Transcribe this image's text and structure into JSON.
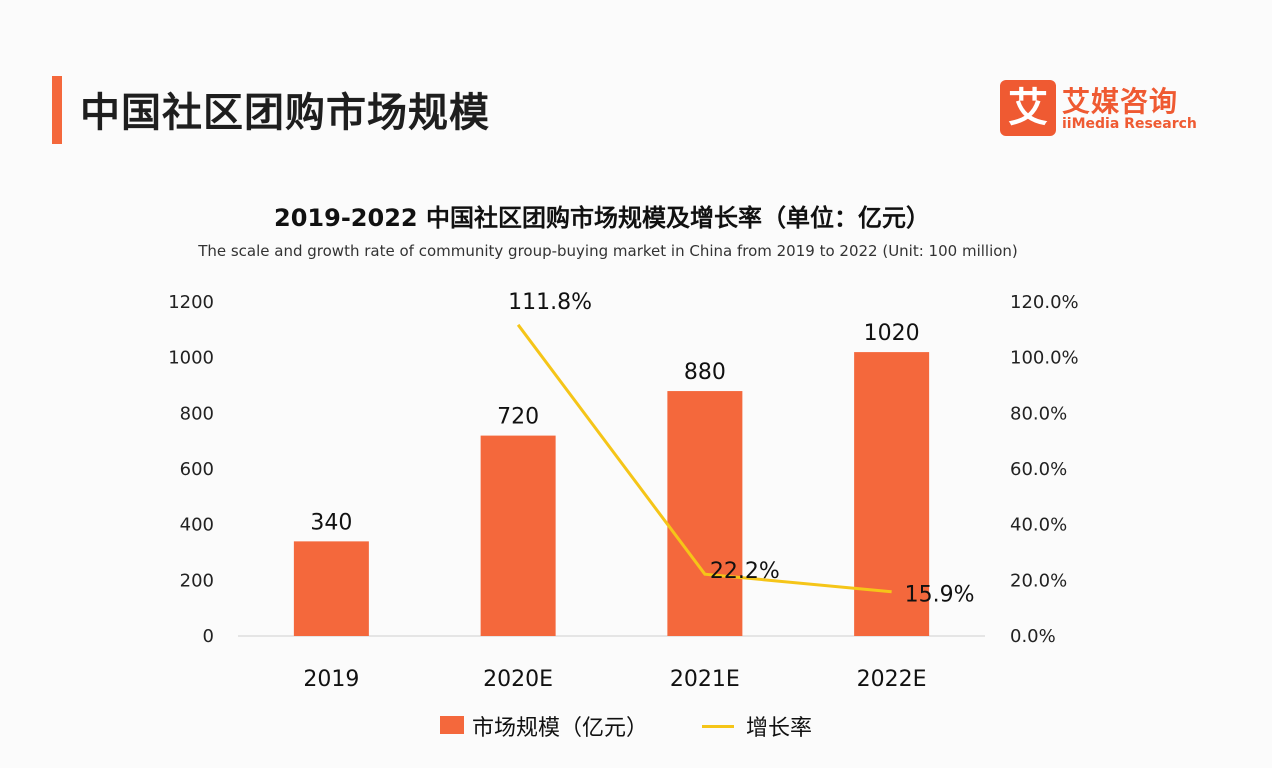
{
  "header": {
    "title": "中国社区团购市场规模",
    "logo_mark": "艾",
    "logo_cn": "艾媒咨询",
    "logo_en": "iiMedia Research"
  },
  "colors": {
    "accent": "#f4683c",
    "bar": "#f4683c",
    "line": "#f5c518",
    "axis": "#cfcfcf"
  },
  "chart_data": {
    "type": "bar",
    "title": "2019-2022 中国社区团购市场规模及增长率（单位：亿元）",
    "subtitle": "The scale and growth rate of community group-buying market in China from 2019 to 2022 (Unit: 100 million)",
    "categories": [
      "2019",
      "2020E",
      "2021E",
      "2022E"
    ],
    "series": [
      {
        "name": "市场规模（亿元）",
        "type": "bar",
        "axis": "left",
        "values": [
          340,
          720,
          880,
          1020
        ],
        "labels": [
          "340",
          "720",
          "880",
          "1020"
        ]
      },
      {
        "name": "增长率",
        "type": "line",
        "axis": "right",
        "values": [
          null,
          111.8,
          22.2,
          15.9
        ],
        "labels": [
          "",
          "111.8%",
          "22.2%",
          "15.9%"
        ]
      }
    ],
    "ylim": [
      0,
      1200
    ],
    "yticks": [
      "0",
      "200",
      "400",
      "600",
      "800",
      "1000",
      "1200"
    ],
    "y2lim": [
      0,
      120
    ],
    "y2ticks": [
      "0.0%",
      "20.0%",
      "40.0%",
      "60.0%",
      "80.0%",
      "100.0%",
      "120.0%"
    ],
    "grid": false,
    "legend": "bottom"
  }
}
